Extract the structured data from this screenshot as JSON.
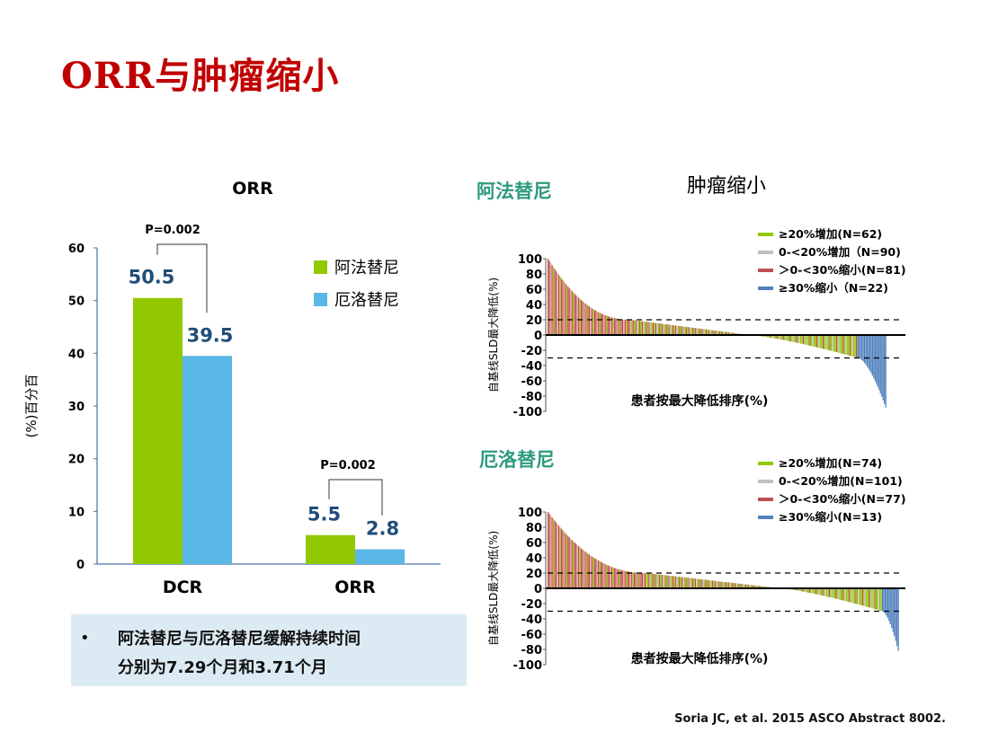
{
  "slide": {
    "title": "ORR与肿瘤缩小",
    "note_bullet": "•",
    "note_line1": "阿法替尼与厄洛替尼缓解持续时间",
    "note_line2": "分别为7.29个月和3.71个月",
    "citation": "Soria JC, et al. 2015 ASCO Abstract 8002."
  },
  "colors": {
    "green": "#92c800",
    "lightblue": "#5ab8e6",
    "red": "#c0504d",
    "pink": "#e0a0a8",
    "gray": "#c0c0c0",
    "blue": "#4f81bd",
    "title_red": "#c00000",
    "value_blue": "#1f4e79",
    "teal_title": "#2e9a7f"
  },
  "chart_data": [
    {
      "type": "bar",
      "title": "ORR",
      "ylabel": "(%)百分百",
      "ylim": [
        0,
        60
      ],
      "yticks": [
        "0",
        "10",
        "20",
        "30",
        "40",
        "50",
        "60"
      ],
      "categories": [
        "DCR",
        "ORR"
      ],
      "series": [
        {
          "name": "阿法替尼",
          "color": "#92c800",
          "values": [
            50.5,
            5.5
          ],
          "labels": [
            "50.5",
            "5.5"
          ]
        },
        {
          "name": "厄洛替尼",
          "color": "#5ab8e6",
          "values": [
            39.5,
            2.8
          ],
          "labels": [
            "39.5",
            "2.8"
          ]
        }
      ],
      "annotations": [
        "P=0.002",
        "P=0.002"
      ]
    },
    {
      "type": "bar",
      "panel_title": "肿瘤缩小",
      "title": "阿法替尼",
      "ylabel": "自基线SLD最大降低(%)",
      "xlabel": "患者按最大降低排序(%)",
      "ylim": [
        -100,
        100
      ],
      "yticks": [
        "100",
        "80",
        "60",
        "40",
        "20",
        "0",
        "-20",
        "-40",
        "-60",
        "-80",
        "-100"
      ],
      "reference_lines": [
        20,
        -30
      ],
      "legend": [
        "≥20%增加(N=62)",
        "0-<20%增加（N=90)",
        "＞0-<30%缩小(N=81)",
        "≥30%缩小（N=22)"
      ],
      "counts": [
        62,
        90,
        81,
        22
      ],
      "start_value": 100,
      "end_value": -95
    },
    {
      "type": "bar",
      "title": "厄洛替尼",
      "ylabel": "自基线SLD最大降低(%)",
      "xlabel": "患者按最大降低排序(%)",
      "ylim": [
        -100,
        100
      ],
      "yticks": [
        "100",
        "80",
        "60",
        "40",
        "20",
        "0",
        "-20",
        "-40",
        "-60",
        "-80",
        "-100"
      ],
      "reference_lines": [
        20,
        -30
      ],
      "legend": [
        "≥20%增加(N=74)",
        "0-<20%增加(N=101)",
        "＞0-<30%缩小(N=77)",
        "≥30%缩小(N=13)"
      ],
      "counts": [
        74,
        101,
        77,
        13
      ],
      "start_value": 100,
      "end_value": -82
    }
  ]
}
